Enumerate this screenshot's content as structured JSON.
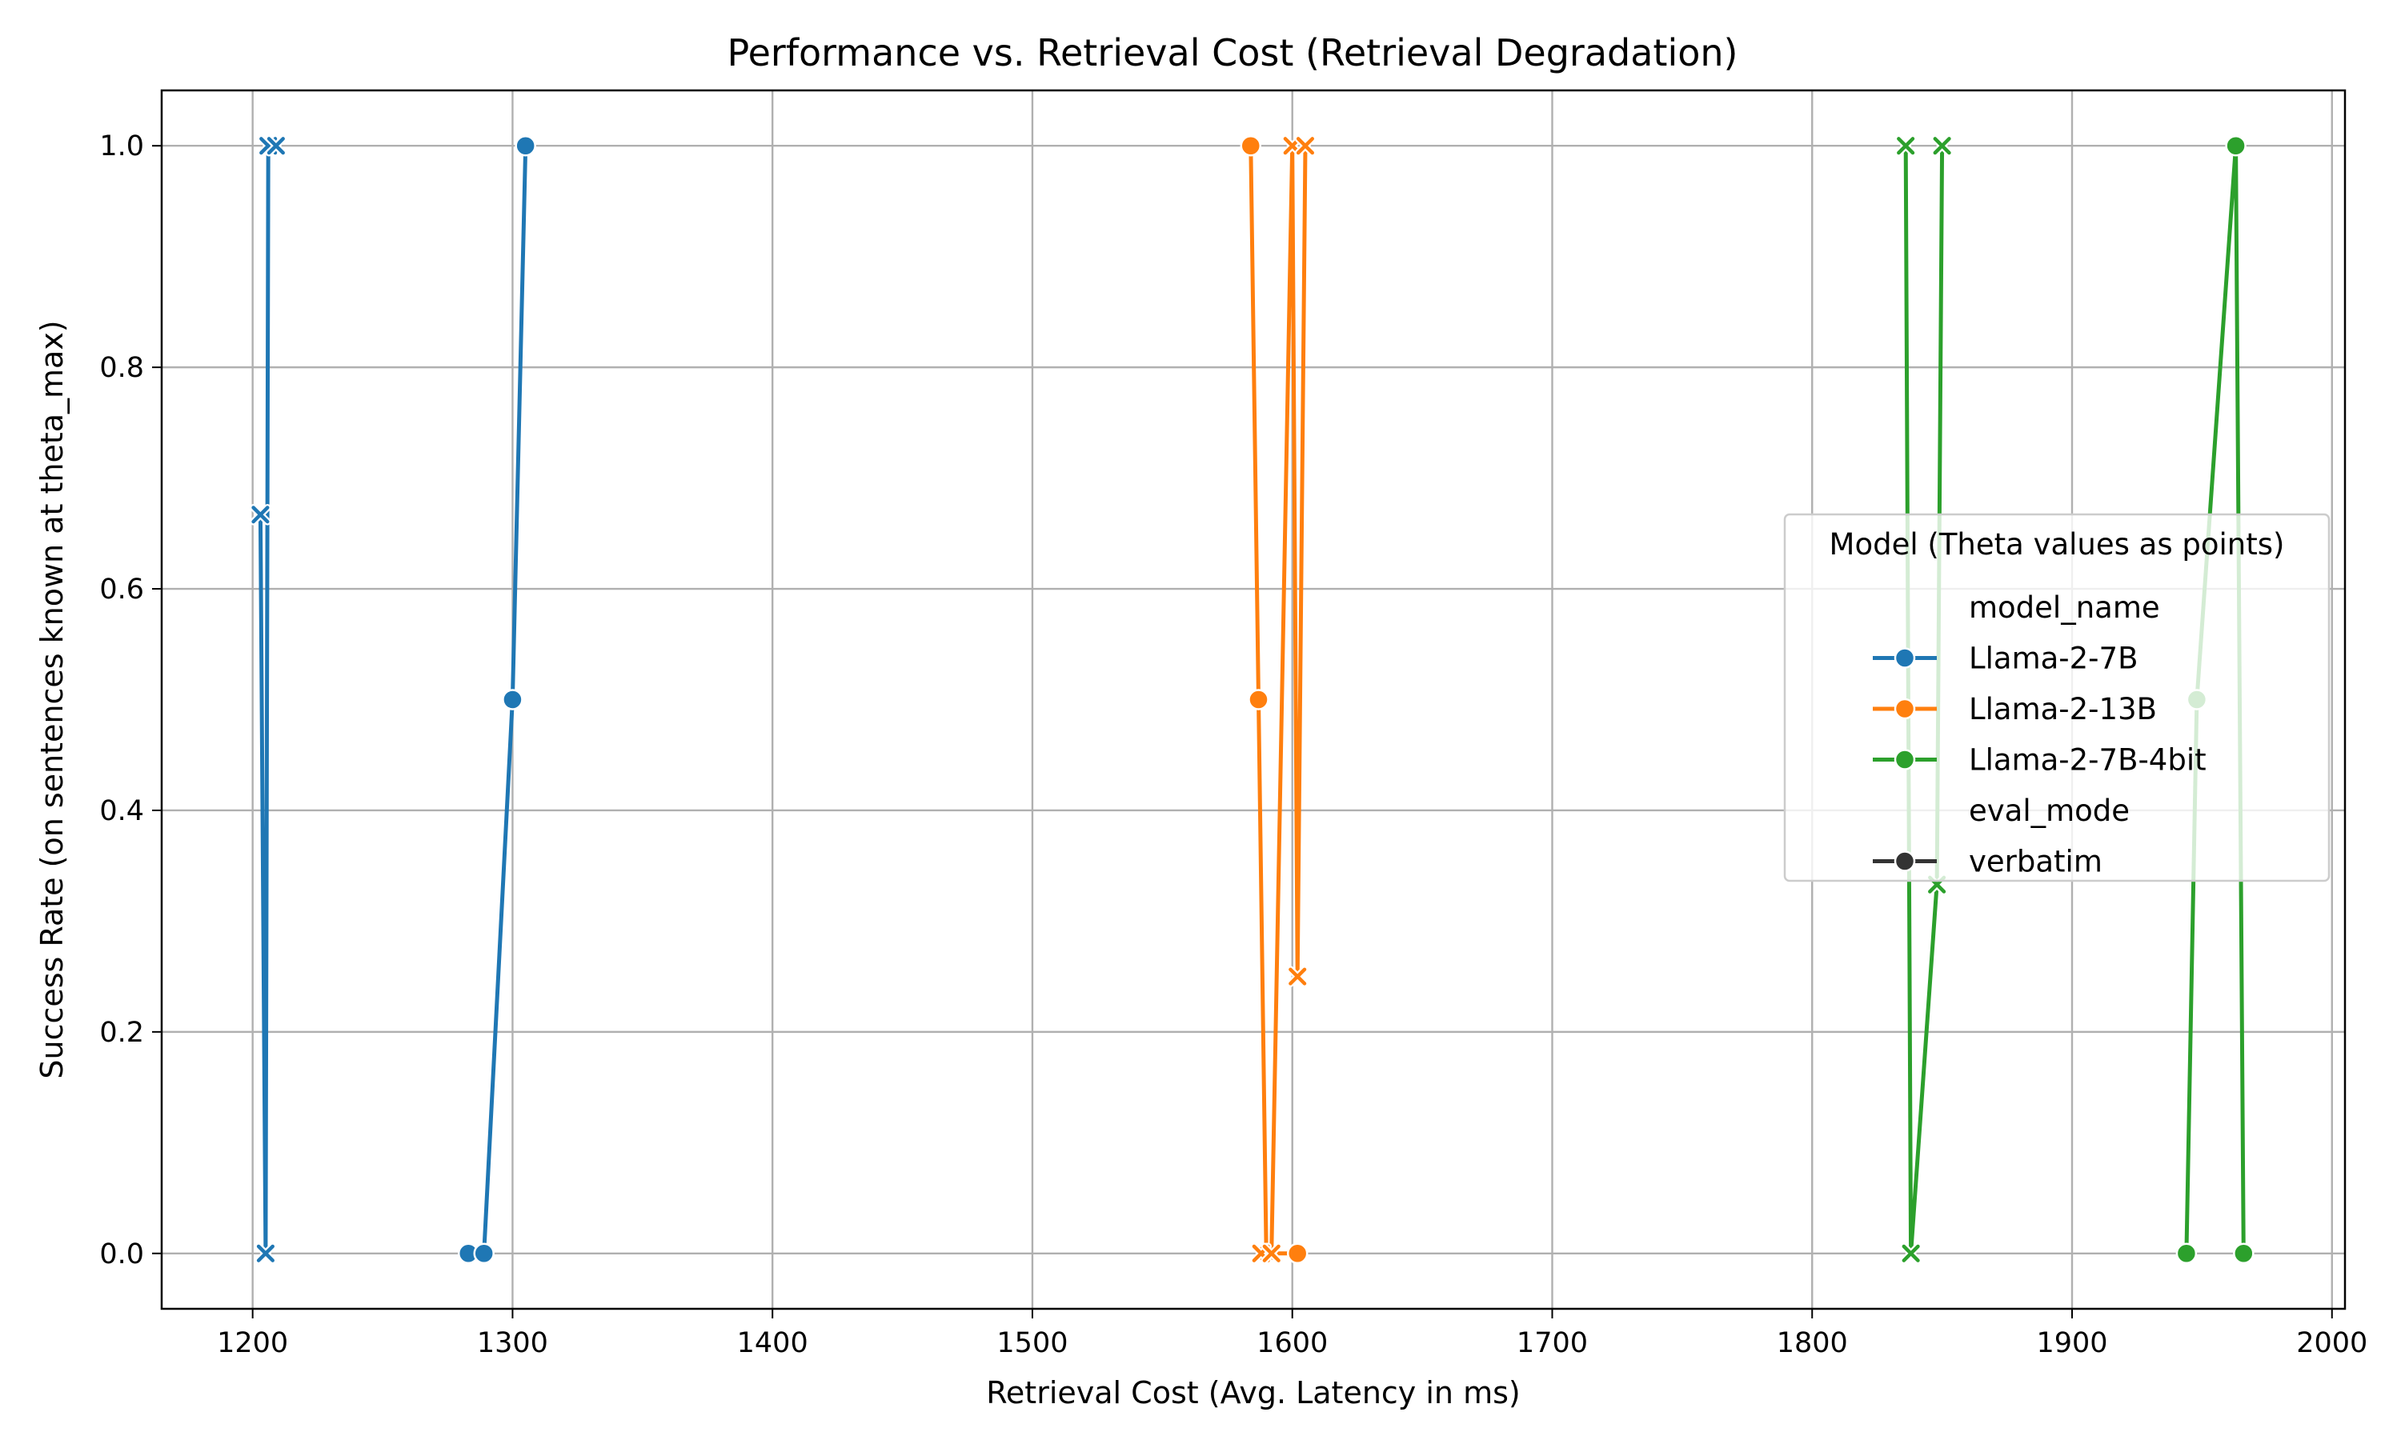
{
  "chart_data": {
    "type": "line",
    "title": "Performance vs. Retrieval Cost (Retrieval Degradation)",
    "xlabel": "Retrieval Cost (Avg. Latency in ms)",
    "ylabel": "Success Rate (on sentences known at theta_max)",
    "xlim": [
      1165,
      2005
    ],
    "ylim": [
      -0.05,
      1.05
    ],
    "x_ticks": [
      1200,
      1300,
      1400,
      1500,
      1600,
      1700,
      1800,
      1900,
      2000
    ],
    "x_tick_labels": [
      "1200",
      "1300",
      "1400",
      "1500",
      "1600",
      "1700",
      "1800",
      "1900",
      "2000"
    ],
    "y_ticks": [
      0.0,
      0.2,
      0.4,
      0.6,
      0.8,
      1.0
    ],
    "y_tick_labels": [
      "0.0",
      "0.2",
      "0.4",
      "0.6",
      "0.8",
      "1.0"
    ],
    "grid": true,
    "legend_position": "center-right",
    "legend": {
      "title": "Model (Theta values as points)",
      "entries": [
        {
          "label": "model_name",
          "kind": "header"
        },
        {
          "label": "Llama-2-7B",
          "kind": "series",
          "color": "#1f77b4",
          "marker": "circle"
        },
        {
          "label": "Llama-2-13B",
          "kind": "series",
          "color": "#ff7f0e",
          "marker": "circle"
        },
        {
          "label": "Llama-2-7B-4bit",
          "kind": "series",
          "color": "#2ca02c",
          "marker": "circle"
        },
        {
          "label": "eval_mode",
          "kind": "header"
        },
        {
          "label": "verbatim",
          "kind": "series",
          "color": "#333333",
          "marker": "circle"
        }
      ]
    },
    "series": [
      {
        "model": "Llama-2-7B",
        "color": "#1f77b4",
        "marker": "circle",
        "points": [
          [
            1283,
            0.0
          ],
          [
            1289,
            0.0
          ],
          [
            1300,
            0.5
          ],
          [
            1305,
            1.0
          ]
        ]
      },
      {
        "model": "Llama-2-7B",
        "color": "#1f77b4",
        "marker": "x",
        "points": [
          [
            1203,
            0.667
          ],
          [
            1205,
            0.0
          ],
          [
            1206,
            1.0
          ],
          [
            1209,
            1.0
          ]
        ]
      },
      {
        "model": "Llama-2-13B",
        "color": "#ff7f0e",
        "marker": "circle",
        "points": [
          [
            1584,
            1.0
          ],
          [
            1587,
            0.5
          ],
          [
            1590,
            0.0
          ],
          [
            1602,
            0.0
          ]
        ]
      },
      {
        "model": "Llama-2-13B",
        "color": "#ff7f0e",
        "marker": "x",
        "points": [
          [
            1588,
            0.0
          ],
          [
            1592,
            0.0
          ],
          [
            1600,
            1.0
          ],
          [
            1602,
            0.25
          ],
          [
            1605,
            1.0
          ]
        ]
      },
      {
        "model": "Llama-2-7B-4bit",
        "color": "#2ca02c",
        "marker": "circle",
        "points": [
          [
            1944,
            0.0
          ],
          [
            1948,
            0.5
          ],
          [
            1963,
            1.0
          ],
          [
            1966,
            0.0
          ]
        ]
      },
      {
        "model": "Llama-2-7B-4bit",
        "color": "#2ca02c",
        "marker": "x",
        "points": [
          [
            1836,
            1.0
          ],
          [
            1838,
            0.0
          ],
          [
            1848,
            0.333
          ],
          [
            1850,
            1.0
          ]
        ]
      }
    ]
  }
}
